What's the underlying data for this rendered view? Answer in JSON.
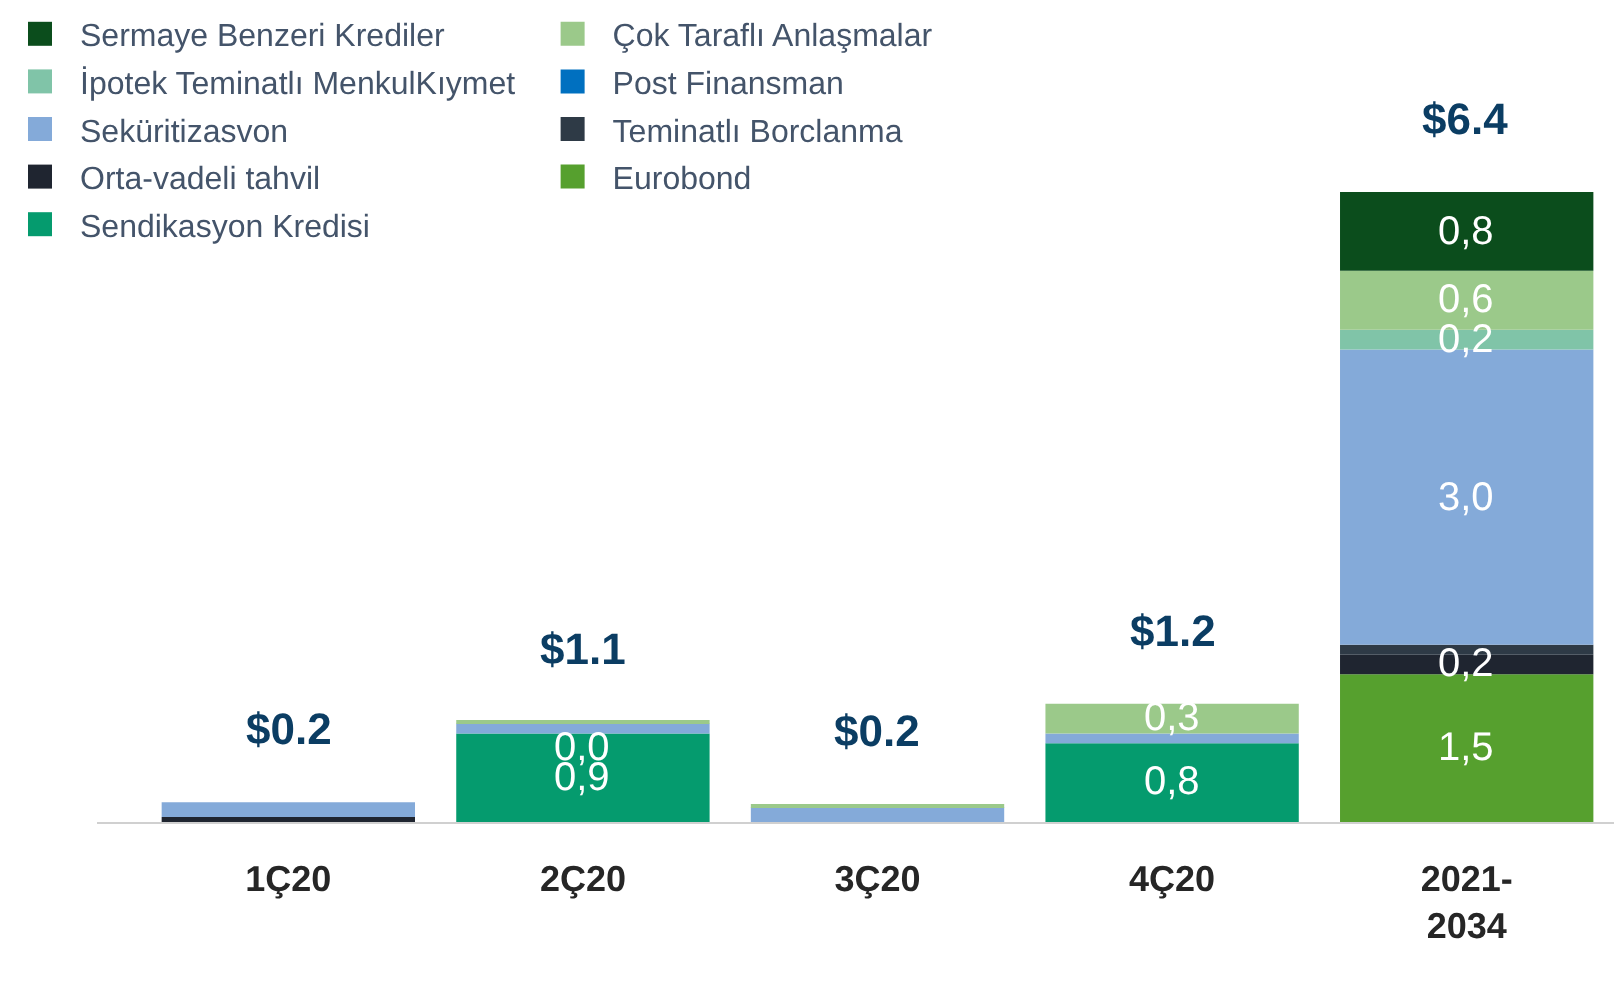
{
  "chart_data": {
    "type": "bar",
    "stacked": true,
    "categories": [
      "1Ç20",
      "2Ç20",
      "3Ç20",
      "4Ç20",
      "2021-\n2034"
    ],
    "series": [
      {
        "name": "Sendikasyon Kredisi",
        "color": "#059b6e",
        "values": [
          null,
          0.9,
          null,
          0.8,
          null
        ],
        "value_labels": [
          null,
          "0,9",
          null,
          "0,8",
          null
        ]
      },
      {
        "name": "Eurobond",
        "color": "#56a02e",
        "values": [
          null,
          null,
          null,
          null,
          1.5
        ],
        "value_labels": [
          null,
          null,
          null,
          null,
          "1,5"
        ]
      },
      {
        "name": "Orta-vadeli tahvil",
        "color": "#1f2530",
        "values": [
          0.05,
          null,
          null,
          null,
          0.2
        ],
        "value_labels": [
          null,
          null,
          null,
          null,
          "0,2"
        ]
      },
      {
        "name": "Teminatlı Borclanma",
        "color": "#2e3a46",
        "values": [
          null,
          null,
          null,
          null,
          0.1
        ]
      },
      {
        "name": "Seküritizasvon",
        "color": "#84aad9",
        "values": [
          0.15,
          0.1,
          0.15,
          0.1,
          3.0
        ],
        "value_labels": [
          null,
          null,
          null,
          null,
          "3,0"
        ]
      },
      {
        "name": "Post Finansman",
        "color": "#0070c0",
        "values": [
          null,
          null,
          null,
          null,
          null
        ]
      },
      {
        "name": "İpotek Teminatlı MenkulKıymet",
        "color": "#80c4a8",
        "values": [
          null,
          null,
          null,
          null,
          0.2
        ],
        "value_labels": [
          null,
          null,
          null,
          null,
          "0,2"
        ]
      },
      {
        "name": "Çok Taraflı Anlaşmalar",
        "color": "#9bc98a",
        "values": [
          null,
          0.02,
          0.03,
          0.3,
          0.6
        ],
        "value_labels": [
          null,
          "0,0",
          null,
          "0,3",
          "0,6"
        ]
      },
      {
        "name": "Sermaye Benzeri Krediler",
        "color": "#0b4d1c",
        "values": [
          null,
          null,
          null,
          null,
          0.8
        ],
        "value_labels": [
          null,
          null,
          null,
          null,
          "0,8"
        ]
      }
    ],
    "totals": [
      "$0.2",
      "$1.1",
      "$0.2",
      "$1.2",
      "$6.4"
    ],
    "legend": "top left"
  }
}
